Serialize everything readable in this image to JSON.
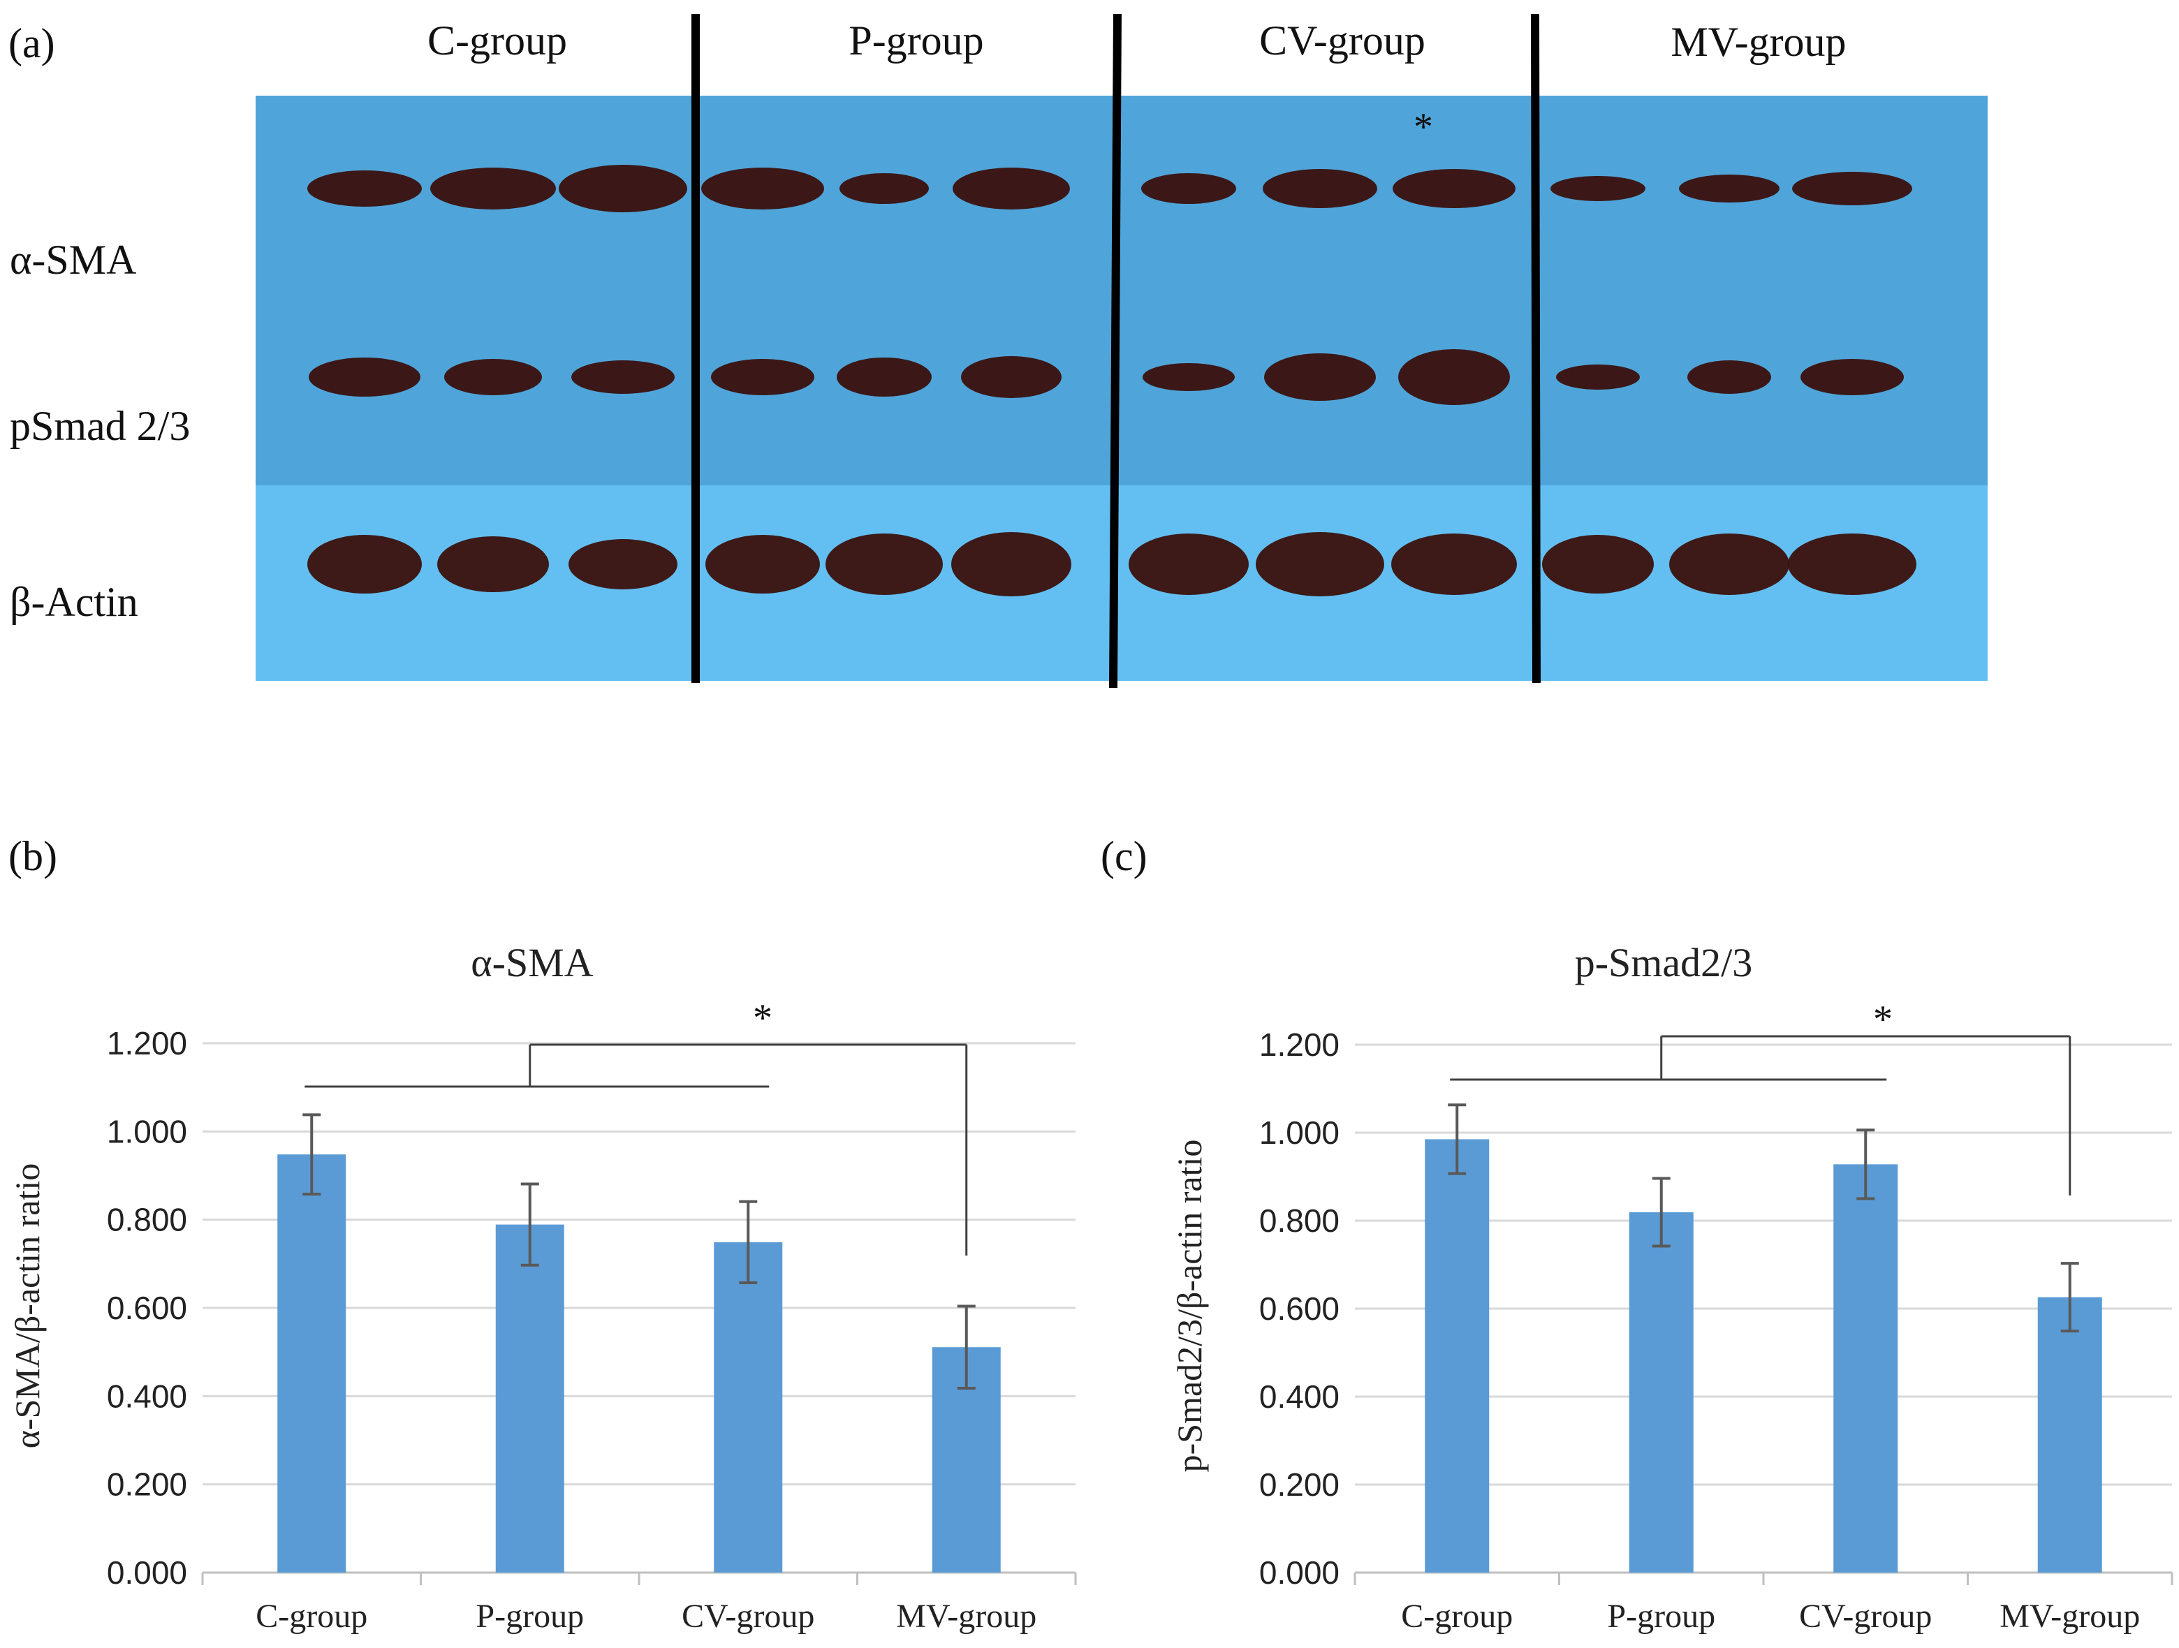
{
  "panel_a": {
    "letter": "(a)",
    "groups": [
      "C-group",
      "P-group",
      "CV-group",
      "MV-group"
    ],
    "blot_labels": [
      "α-SMA",
      "pSmad 2/3",
      "β-Actin"
    ],
    "annotation": "*",
    "colors": {
      "membrane_upper": "#4fa5da",
      "membrane_lower": "#63bff1",
      "band": "#3a0d08"
    }
  },
  "chart_data": [
    {
      "type": "bar",
      "panel_letter": "(b)",
      "title": "α-SMA",
      "ylabel": "α-SMA/β-actin ratio",
      "xlabel": "",
      "categories": [
        "C-group",
        "P-group",
        "CV-group",
        "MV-group"
      ],
      "values": [
        0.948,
        0.789,
        0.749,
        0.511
      ],
      "errors": [
        0.09,
        0.092,
        0.092,
        0.093
      ],
      "ylim": [
        0,
        1.2
      ],
      "yticks": [
        "0.000",
        "0.200",
        "0.400",
        "0.600",
        "0.800",
        "1.000",
        "1.200"
      ],
      "grid": true,
      "significance": "*",
      "bar_color": "#5b9bd5"
    },
    {
      "type": "bar",
      "panel_letter": "(c)",
      "title": "p-Smad2/3",
      "ylabel": "p-Smad2/3/β-actin ratio",
      "xlabel": "",
      "categories": [
        "C-group",
        "P-group",
        "CV-group",
        "MV-group"
      ],
      "values": [
        0.985,
        0.819,
        0.928,
        0.626
      ],
      "errors": [
        0.078,
        0.077,
        0.078,
        0.077
      ],
      "ylim": [
        0,
        1.2
      ],
      "yticks": [
        "0.000",
        "0.200",
        "0.400",
        "0.600",
        "0.800",
        "1.000",
        "1.200"
      ],
      "grid": true,
      "significance": "*",
      "bar_color": "#5b9bd5"
    }
  ]
}
